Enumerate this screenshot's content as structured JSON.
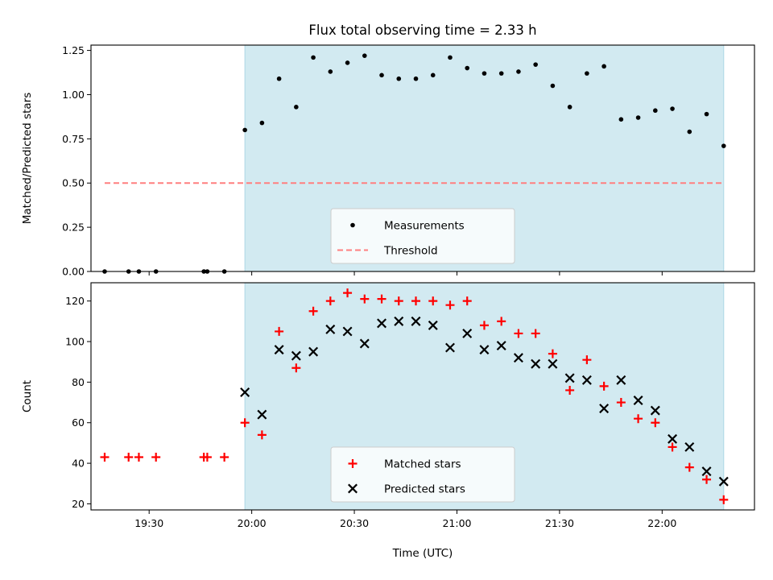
{
  "chart_data": {
    "title": "Flux total observing time = 2.33 h",
    "xlabel": "Time (UTC)",
    "x_unit": "HH:MM UTC",
    "xlim": [
      "19:13",
      "22:27"
    ],
    "x_ticks": [
      "19:30",
      "20:00",
      "20:30",
      "21:00",
      "21:30",
      "22:00"
    ],
    "shaded_span": {
      "start": "19:58",
      "end": "22:18",
      "color": "#add8e6"
    },
    "grid": false,
    "panels": [
      {
        "type": "scatter",
        "ylabel": "Matched/Predicted stars",
        "ylim": [
          0,
          1.28
        ],
        "y_ticks": [
          "0.00",
          "0.25",
          "0.50",
          "0.75",
          "1.00",
          "1.25"
        ],
        "legend_position": "bottom-center",
        "series": [
          {
            "name": "Measurements",
            "marker": "dot",
            "color": "#000000",
            "x": [
              "19:17",
              "19:24",
              "19:27",
              "19:32",
              "19:46",
              "19:47",
              "19:52",
              "19:58",
              "20:03",
              "20:08",
              "20:13",
              "20:18",
              "20:23",
              "20:28",
              "20:33",
              "20:38",
              "20:43",
              "20:48",
              "20:53",
              "20:58",
              "21:03",
              "21:08",
              "21:13",
              "21:18",
              "21:23",
              "21:28",
              "21:33",
              "21:38",
              "21:43",
              "21:48",
              "21:53",
              "21:58",
              "22:03",
              "22:08",
              "22:13",
              "22:18"
            ],
            "y": [
              0,
              0,
              0,
              0,
              0,
              0,
              0,
              0.8,
              0.84,
              1.09,
              0.93,
              1.21,
              1.13,
              1.18,
              1.22,
              1.11,
              1.09,
              1.09,
              1.11,
              1.21,
              1.15,
              1.12,
              1.12,
              1.13,
              1.17,
              1.05,
              0.93,
              1.12,
              1.16,
              0.86,
              0.87,
              0.91,
              0.92,
              0.79,
              0.89,
              0.71
            ]
          },
          {
            "name": "Threshold",
            "marker": "dashed-line",
            "color": "#ff7f7f",
            "x": [
              "19:17",
              "22:18"
            ],
            "y": [
              0.5,
              0.5
            ]
          }
        ]
      },
      {
        "type": "scatter",
        "ylabel": "Count",
        "ylim": [
          17,
          129
        ],
        "y_ticks": [
          "20",
          "40",
          "60",
          "80",
          "100",
          "120"
        ],
        "legend_position": "bottom-center",
        "series": [
          {
            "name": "Matched stars",
            "marker": "plus",
            "color": "#ff0000",
            "x": [
              "19:17",
              "19:24",
              "19:27",
              "19:32",
              "19:46",
              "19:47",
              "19:52",
              "19:58",
              "20:03",
              "20:08",
              "20:13",
              "20:18",
              "20:23",
              "20:28",
              "20:33",
              "20:38",
              "20:43",
              "20:48",
              "20:53",
              "20:58",
              "21:03",
              "21:08",
              "21:13",
              "21:18",
              "21:23",
              "21:28",
              "21:33",
              "21:38",
              "21:43",
              "21:48",
              "21:53",
              "21:58",
              "22:03",
              "22:08",
              "22:13",
              "22:18"
            ],
            "y": [
              43,
              43,
              43,
              43,
              43,
              43,
              43,
              60,
              54,
              105,
              87,
              115,
              120,
              124,
              121,
              121,
              120,
              120,
              120,
              118,
              120,
              108,
              110,
              104,
              104,
              94,
              76,
              91,
              78,
              70,
              62,
              60,
              48,
              38,
              32,
              22
            ]
          },
          {
            "name": "Predicted stars",
            "marker": "x",
            "color": "#000000",
            "x": [
              "19:58",
              "20:03",
              "20:08",
              "20:13",
              "20:18",
              "20:23",
              "20:28",
              "20:33",
              "20:38",
              "20:43",
              "20:48",
              "20:53",
              "20:58",
              "21:03",
              "21:08",
              "21:13",
              "21:18",
              "21:23",
              "21:28",
              "21:33",
              "21:38",
              "21:43",
              "21:48",
              "21:53",
              "21:58",
              "22:03",
              "22:08",
              "22:13",
              "22:18"
            ],
            "y": [
              75,
              64,
              96,
              93,
              95,
              106,
              105,
              99,
              109,
              110,
              110,
              108,
              97,
              104,
              96,
              98,
              92,
              89,
              89,
              82,
              81,
              67,
              81,
              71,
              66,
              52,
              48,
              36,
              31
            ]
          }
        ]
      }
    ]
  }
}
